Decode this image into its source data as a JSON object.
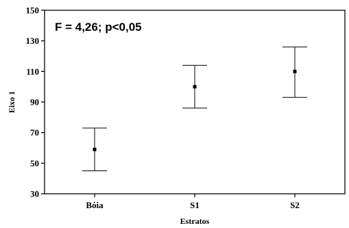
{
  "chart_data": {
    "type": "scatter",
    "title": "",
    "annotation": "F = 4,26; p<0,05",
    "xlabel": "Estratos",
    "ylabel": "Eixo 1",
    "categories": [
      "Bóia",
      "S1",
      "S2"
    ],
    "series": [
      {
        "mean": [
          59,
          100,
          110
        ],
        "lower": [
          45,
          86,
          93
        ],
        "upper": [
          73,
          114,
          126
        ]
      }
    ],
    "ylim": [
      30,
      150
    ],
    "yticks": [
      "30",
      "50",
      "70",
      "90",
      "110",
      "130",
      "150"
    ],
    "grid": false,
    "legend": "none"
  }
}
